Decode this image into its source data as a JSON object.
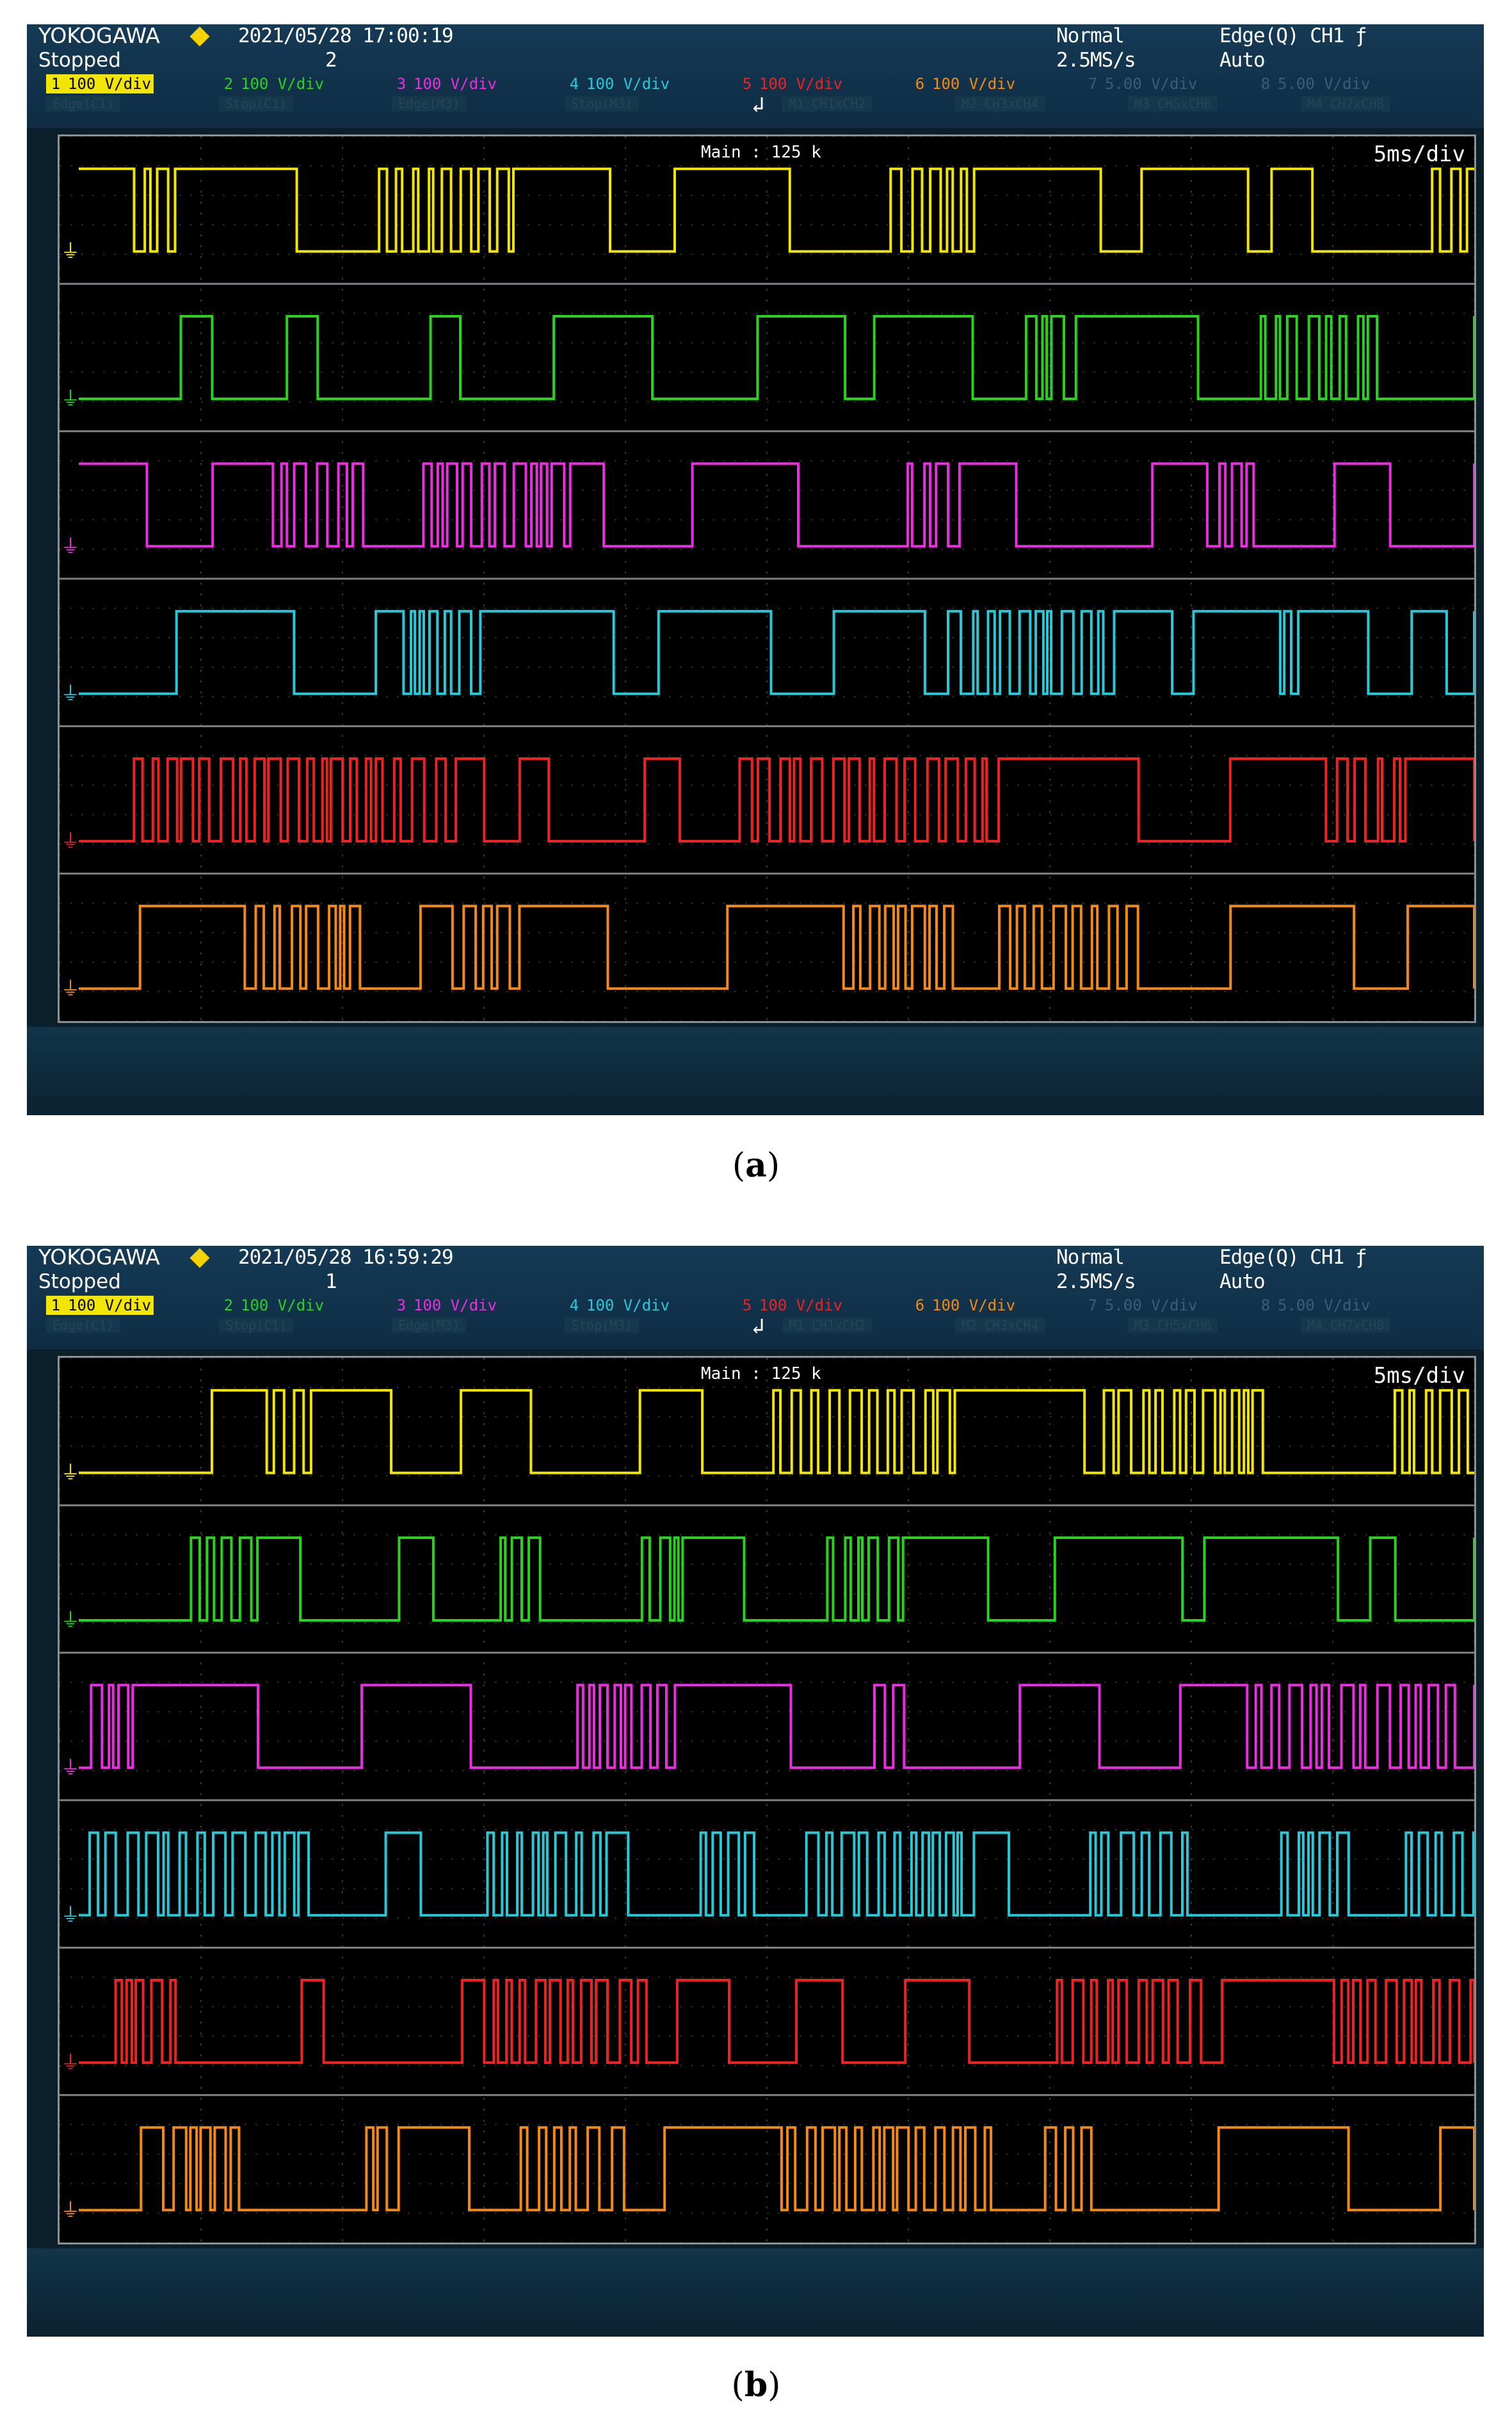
{
  "panels": [
    {
      "brand": "YOKOGAWA",
      "status": "Stopped",
      "datetime": "2021/05/28 17:00:19",
      "acq_count": "2",
      "mode": "Normal",
      "sample_rate": "2.5MS/s",
      "trigger": "Edge(Q) CH1 ƒ",
      "trigger_mode": "Auto",
      "main_label": "Main : 125 k",
      "time_div": "5ms/div",
      "caption_letter": "a",
      "waveform_seed": 11
    },
    {
      "brand": "YOKOGAWA",
      "status": "Stopped",
      "datetime": "2021/05/28 16:59:29",
      "acq_count": "1",
      "mode": "Normal",
      "sample_rate": "2.5MS/s",
      "trigger": "Edge(Q) CH1 ƒ",
      "trigger_mode": "Auto",
      "main_label": "Main : 125 k",
      "time_div": "5ms/div",
      "caption_letter": "b",
      "waveform_seed": 47
    }
  ],
  "channels": [
    {
      "num": "1",
      "label": "100 V/div",
      "color": "#f2e600",
      "highlight": true
    },
    {
      "num": "2",
      "label": "100 V/div",
      "color": "#29d21e",
      "highlight": false
    },
    {
      "num": "3",
      "label": "100 V/div",
      "color": "#ea2ee0",
      "highlight": false
    },
    {
      "num": "4",
      "label": "100 V/div",
      "color": "#27c8d8",
      "highlight": false
    },
    {
      "num": "5",
      "label": "100 V/div",
      "color": "#ee2222",
      "highlight": false
    },
    {
      "num": "6",
      "label": "100 V/div",
      "color": "#f28a14",
      "highlight": false
    },
    {
      "num": "7",
      "label": "5.00 V/div",
      "color": "#3a5e74",
      "highlight": false
    },
    {
      "num": "8",
      "label": "5.00 V/div",
      "color": "#3a5e74",
      "highlight": false
    }
  ],
  "row2_cells": [
    "Edge(C1)",
    "Stop(C1)",
    "Edge(M3)",
    "Stop(M3)",
    "M1 CH1xCH2",
    "M2 CH3xCH4",
    "M3 CH5xCH6",
    "M4 CH7xCH8"
  ],
  "colors": {
    "background": "#0b1f2b",
    "screen": "#000000",
    "grid": "#3a3a3a"
  }
}
